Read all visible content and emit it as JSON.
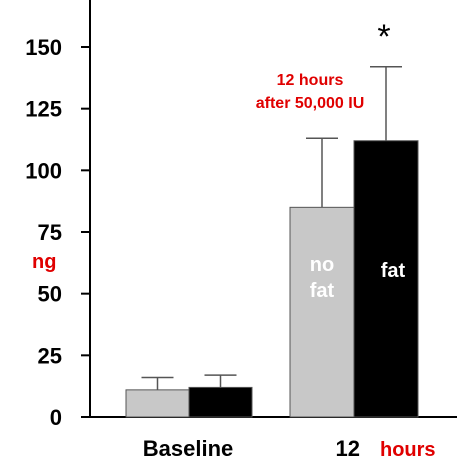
{
  "chart_data": {
    "type": "bar",
    "ylabel": "ng",
    "ylim": [
      0,
      150
    ],
    "yticks": [
      0,
      25,
      50,
      75,
      100,
      125,
      150
    ],
    "groups": [
      {
        "label": "Baseline",
        "label_suffix": "",
        "bars": [
          {
            "name": "",
            "value": 11,
            "error": 5,
            "color": "#c8c8c8",
            "text": ""
          },
          {
            "name": "",
            "value": 12,
            "error": 5,
            "color": "#000000",
            "text": ""
          }
        ]
      },
      {
        "label": "12",
        "label_suffix": "hours",
        "bars": [
          {
            "name": "no fat",
            "value": 85,
            "error": 28,
            "color": "#c8c8c8",
            "text": "no fat"
          },
          {
            "name": "fat",
            "value": 112,
            "error": 30,
            "color": "#000000",
            "text": "fat"
          }
        ]
      }
    ],
    "annotations": {
      "significance": "*",
      "note_line1": "12 hours",
      "note_line2": "after 50,000 IU"
    },
    "colors": {
      "label_red": "#e00000",
      "bar_gray": "#c8c8c8",
      "bar_black": "#000000"
    }
  }
}
